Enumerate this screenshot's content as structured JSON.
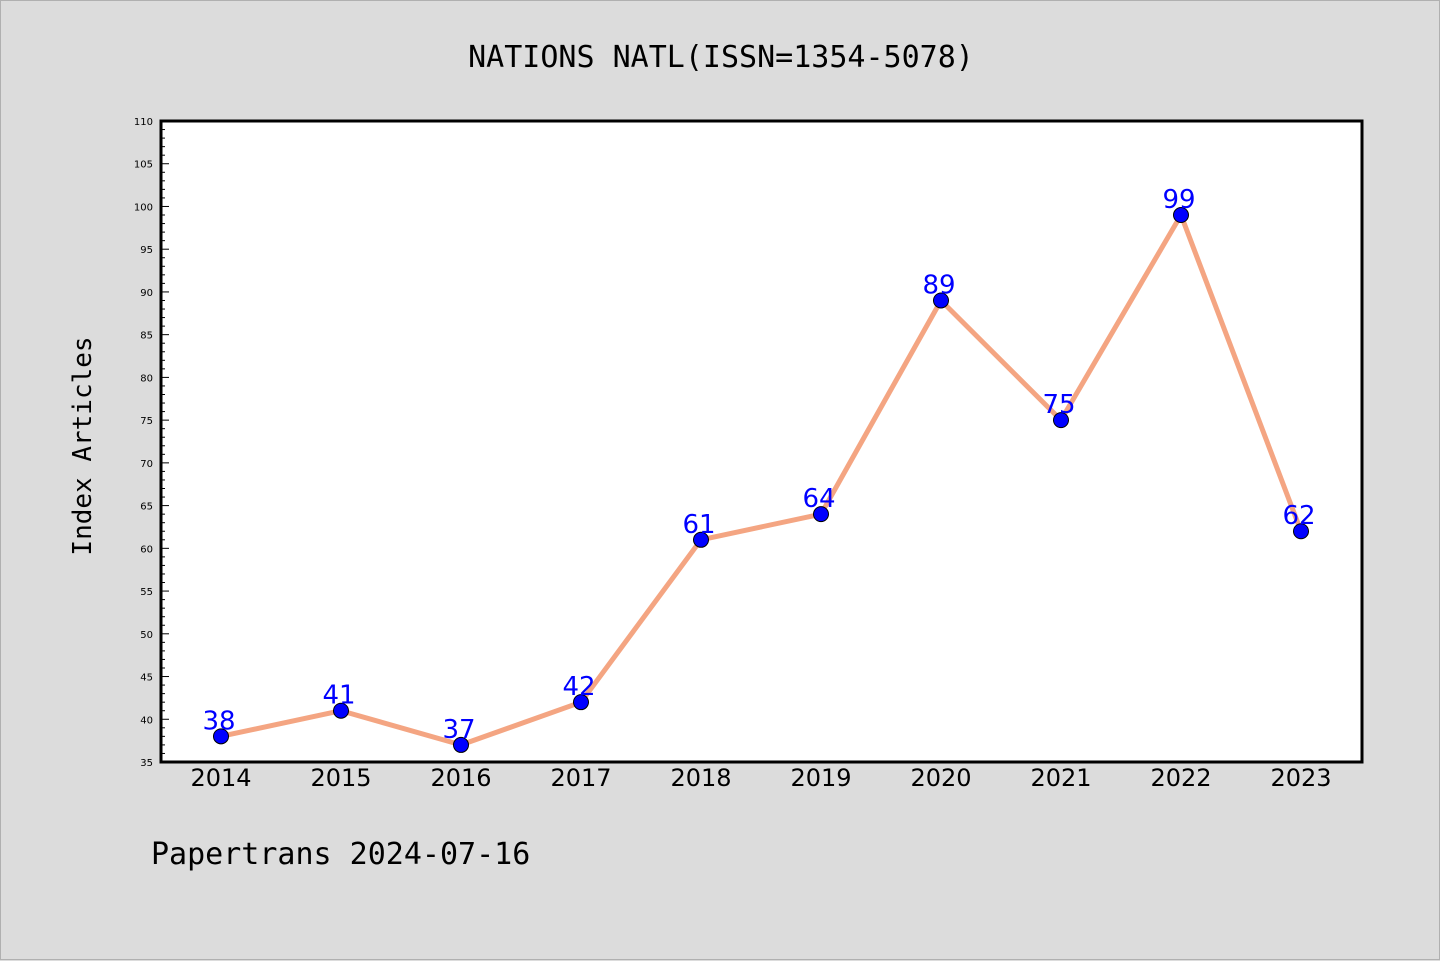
{
  "chart_data": {
    "type": "line",
    "title": "NATIONS NATL(ISSN=1354-5078)",
    "ylabel": "Index Articles",
    "xlabel": "",
    "categories": [
      "2014",
      "2015",
      "2016",
      "2017",
      "2018",
      "2019",
      "2020",
      "2021",
      "2022",
      "2023"
    ],
    "values": [
      38,
      41,
      37,
      42,
      61,
      64,
      89,
      75,
      99,
      62
    ],
    "ylim": [
      35,
      110
    ],
    "ytick_step": 5,
    "grid": false,
    "legend": "none",
    "colors": {
      "line": "#f4a582",
      "marker": "#0000ff",
      "data_label": "#0000ff",
      "background": "#dcdcdc",
      "plot_background": "#ffffff"
    }
  },
  "footer": "Papertrans 2024-07-16"
}
